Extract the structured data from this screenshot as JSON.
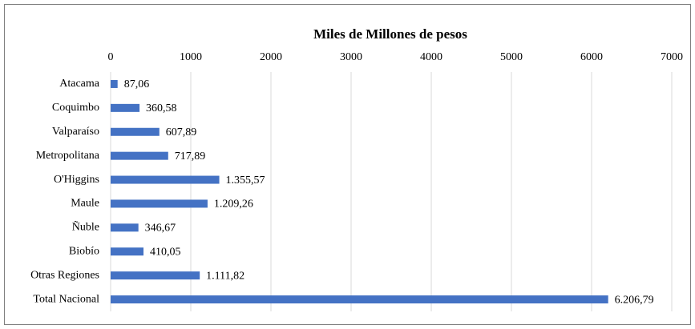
{
  "chart_data": {
    "type": "bar",
    "orientation": "horizontal",
    "title": "Miles de Millones de pesos",
    "categories": [
      "Atacama",
      "Coquimbo",
      "Valparaíso",
      "Metropolitana",
      "O'Higgins",
      "Maule",
      "Ñuble",
      "Biobío",
      "Otras Regiones",
      "Total Nacional"
    ],
    "values": [
      87.06,
      360.58,
      607.89,
      717.89,
      1355.57,
      1209.26,
      346.67,
      410.05,
      1111.82,
      6206.79
    ],
    "value_labels": [
      "87,06",
      "360,58",
      "607,89",
      "717,89",
      "1.355,57",
      "1.209,26",
      "346,67",
      "410,05",
      "1.111,82",
      "6.206,79"
    ],
    "color": "#4472c4",
    "xlim": [
      0,
      7000
    ],
    "xticks": [
      0,
      1000,
      2000,
      3000,
      4000,
      5000,
      6000,
      7000
    ],
    "grid": true
  }
}
